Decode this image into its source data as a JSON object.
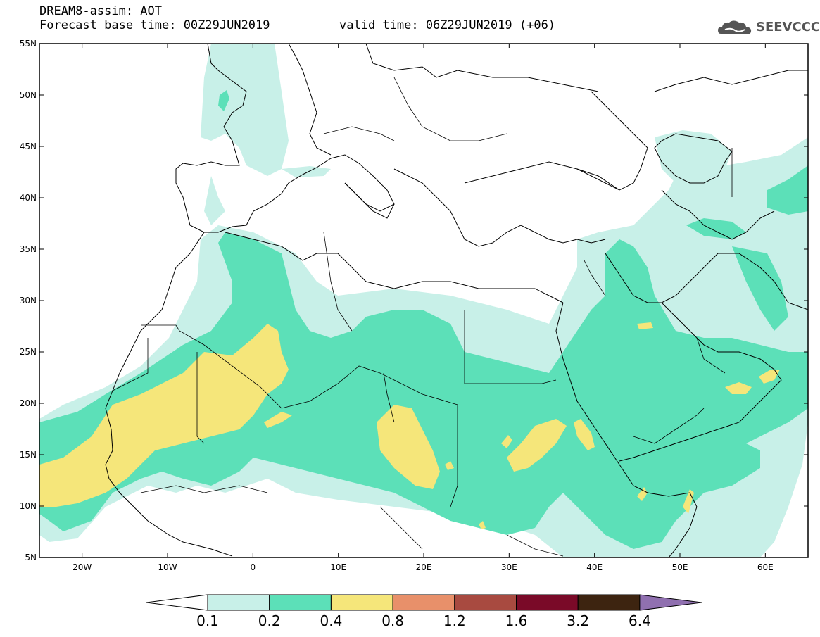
{
  "header": {
    "title": "DREAM8-assim: AOT",
    "base_time": "Forecast base time: 00Z29JUN2019",
    "valid_time": "valid time: 06Z29JUN2019 (+06)",
    "logo_text": "SEEVCCC"
  },
  "map": {
    "lon_range": [
      -25,
      65
    ],
    "lat_range": [
      5,
      55
    ],
    "lat_labels": [
      "55N",
      "50N",
      "45N",
      "40N",
      "35N",
      "30N",
      "25N",
      "20N",
      "15N",
      "10N",
      "5N"
    ],
    "lon_labels": [
      "20W",
      "10W",
      "0",
      "10E",
      "20E",
      "30E",
      "40E",
      "50E",
      "60E"
    ]
  },
  "colorbar": {
    "labels": [
      "0.1",
      "0.2",
      "0.4",
      "0.8",
      "1.2",
      "1.6",
      "3.2",
      "6.4"
    ],
    "colors": [
      "#c8f0e8",
      "#5ce0b8",
      "#f5e67a",
      "#e8906a",
      "#a84a40",
      "#7a0a28",
      "#3d2410",
      "#9070b0"
    ]
  },
  "palette": {
    "c01": "#c8f0e8",
    "c02": "#5ce0b8",
    "c04": "#f5e67a"
  }
}
